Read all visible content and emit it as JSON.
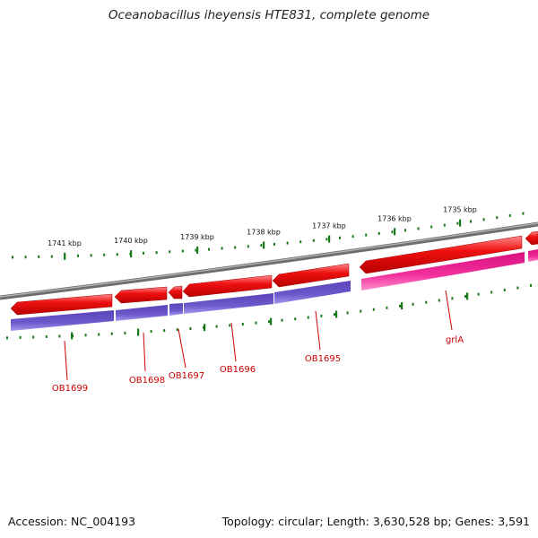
{
  "title": "Oceanobacillus iheyensis HTE831, complete genome",
  "footer": {
    "accession": "Accession: NC_004193",
    "summary": "Topology: circular; Length: 3,630,528 bp; Genes: 3,591"
  },
  "scale": {
    "ticks": [
      {
        "label": "1741 kbp",
        "kbp": 1741
      },
      {
        "label": "1740 kbp",
        "kbp": 1740
      },
      {
        "label": "1739 kbp",
        "kbp": 1739
      },
      {
        "label": "1738 kbp",
        "kbp": 1738
      },
      {
        "label": "1737 kbp",
        "kbp": 1737
      },
      {
        "label": "1736 kbp",
        "kbp": 1736
      },
      {
        "label": "1735 kbp",
        "kbp": 1735
      }
    ]
  },
  "genes": [
    {
      "label": "OB1699"
    },
    {
      "label": "OB1698"
    },
    {
      "label": "OB1697"
    },
    {
      "label": "OB1696"
    },
    {
      "label": "OB1695"
    },
    {
      "label": "grlA"
    }
  ],
  "colors": {
    "backbone": "#808080",
    "cds": "#e00000",
    "cds_highlight": "#ff6a6a",
    "gene_blue": "#6a55c8",
    "gene_pink": "#ee2a9c",
    "tick": "#1a7a1a",
    "label": "#cc0000"
  }
}
